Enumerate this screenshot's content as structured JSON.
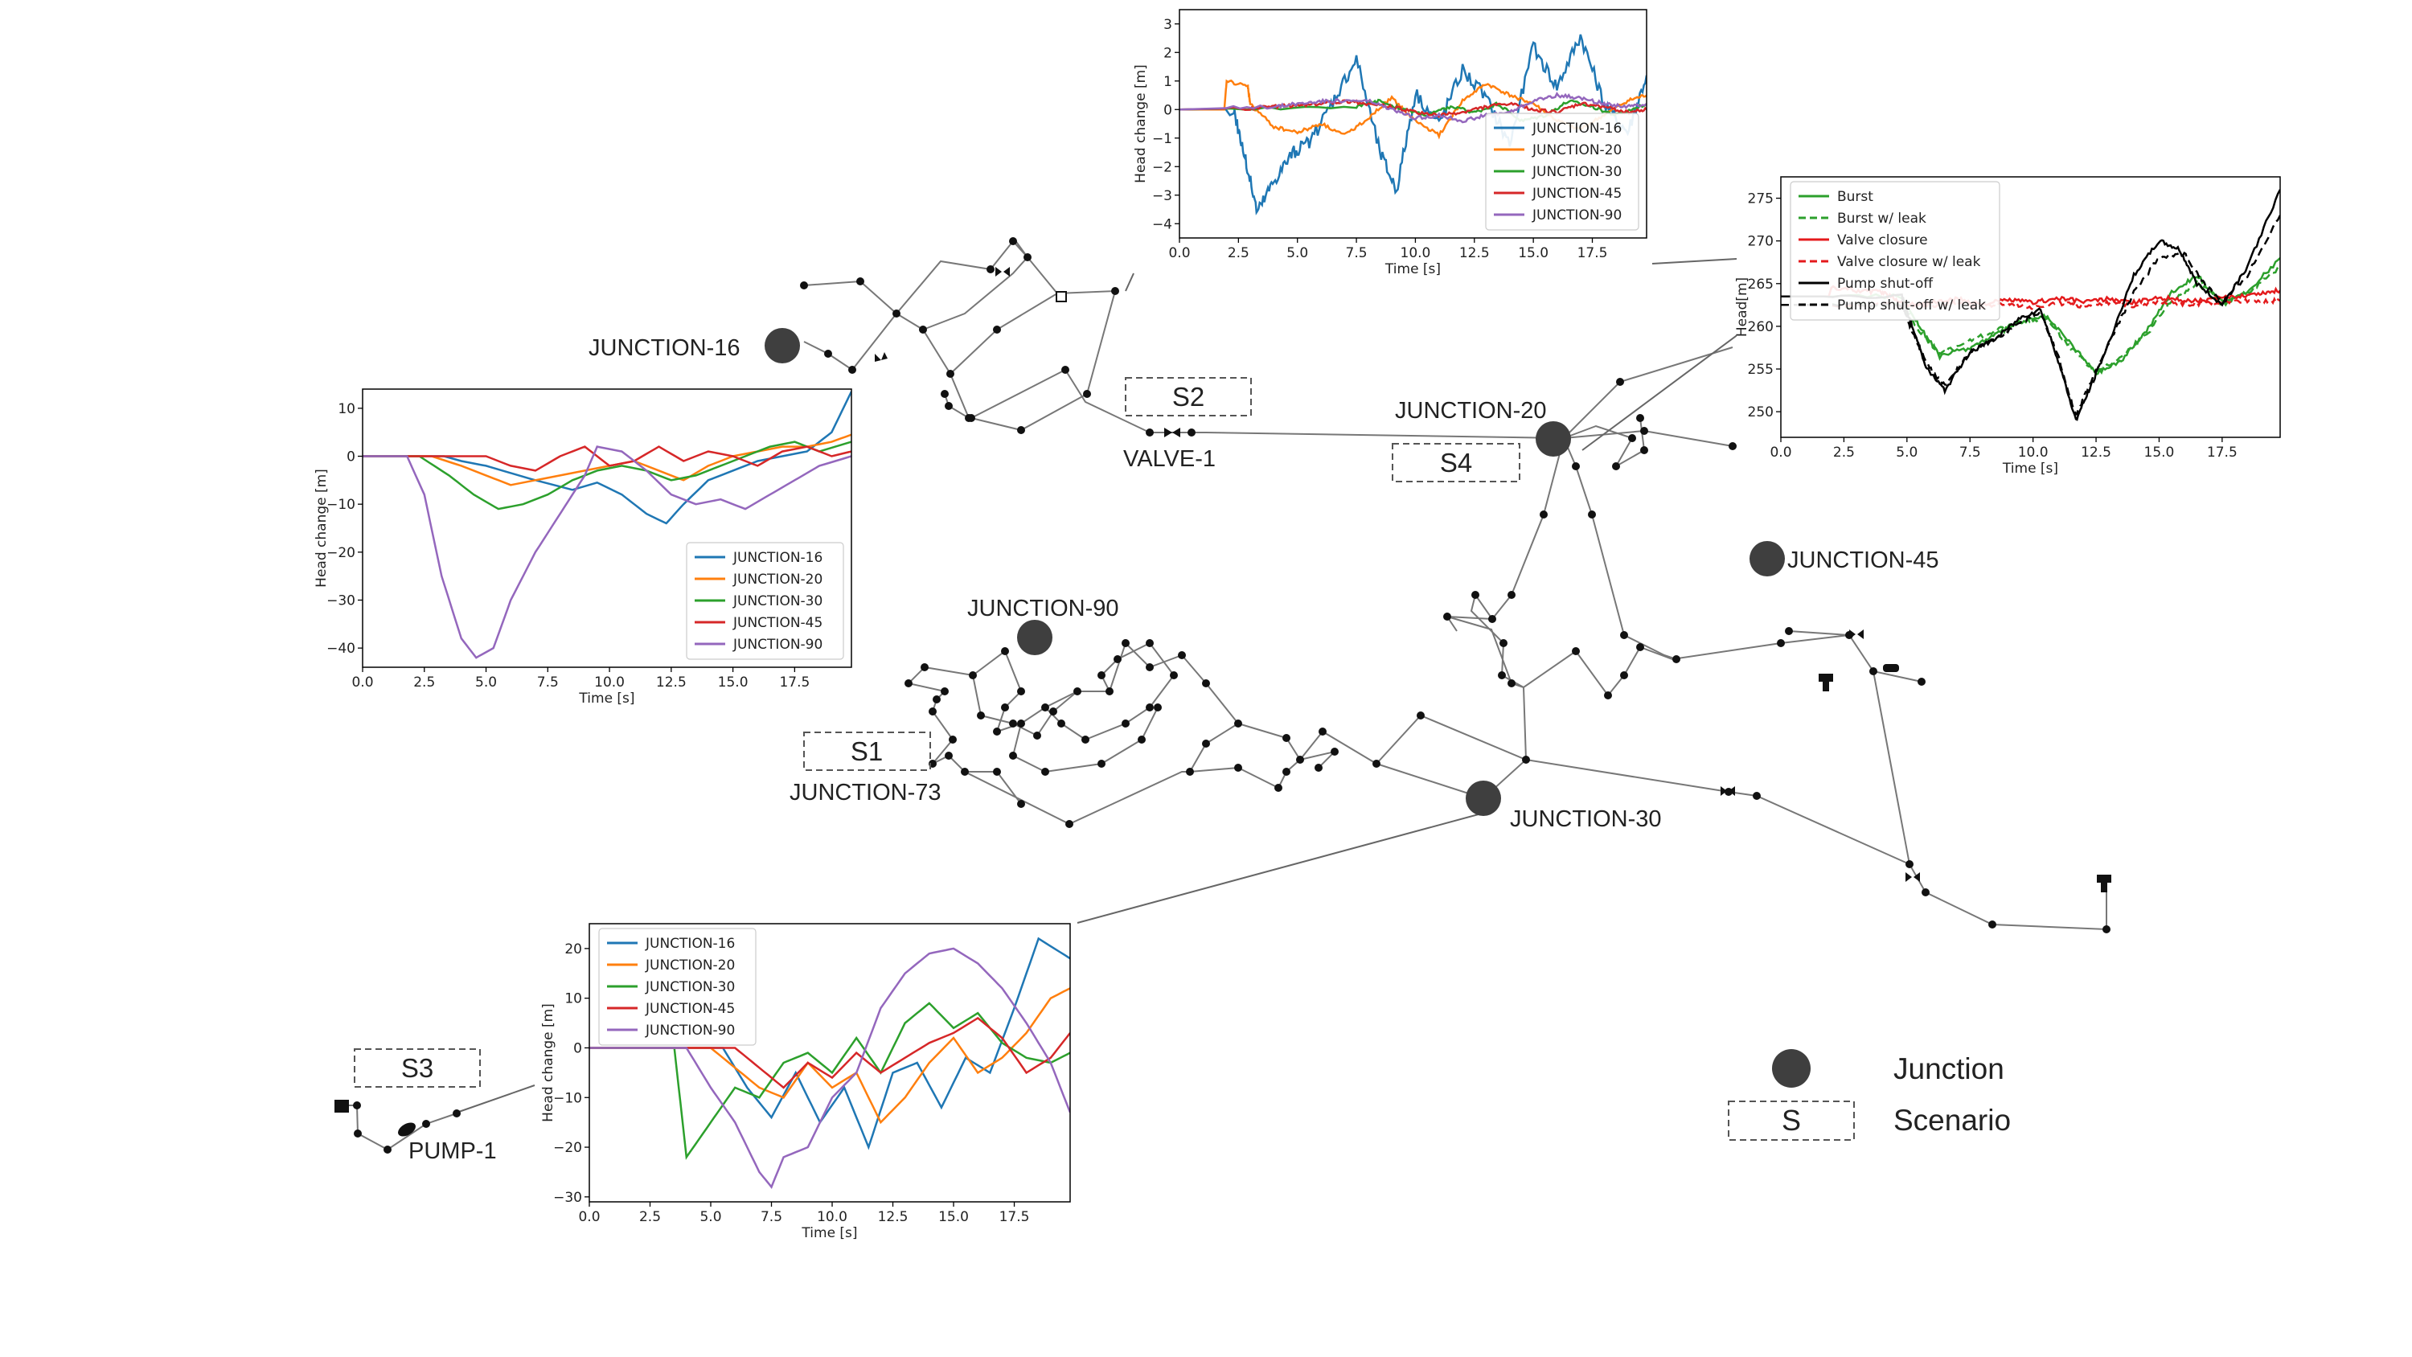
{
  "network": {
    "labels": {
      "junction16": "JUNCTION-16",
      "junction20": "JUNCTION-20",
      "junction30": "JUNCTION-30",
      "junction45": "JUNCTION-45",
      "junction90": "JUNCTION-90",
      "junction73": "JUNCTION-73",
      "valve1": "VALVE-1",
      "pump1": "PUMP-1"
    },
    "scenarios": [
      "S1",
      "S2",
      "S3",
      "S4"
    ]
  },
  "legend": {
    "junction_label": "Junction",
    "scenario_symbol": "S",
    "scenario_label": "Scenario"
  },
  "colors": {
    "j16": "#1f77b4",
    "j20": "#ff7f0e",
    "j30": "#2ca02c",
    "j45": "#d62728",
    "j90": "#9467bd",
    "node": "#444444",
    "pipe": "#777777"
  },
  "chart_data": [
    {
      "id": "s2",
      "type": "line",
      "xlabel": "Time [s]",
      "ylabel": "Head change [m]",
      "xlim": [
        0,
        19.8
      ],
      "ylim": [
        -4.5,
        3.5
      ],
      "xticks": [
        "0.0",
        "2.5",
        "5.0",
        "7.5",
        "10.0",
        "12.5",
        "15.0",
        "17.5"
      ],
      "yticks": [
        "−4",
        "−3",
        "−2",
        "−1",
        "0",
        "1",
        "2",
        "3"
      ],
      "ytick_values": [
        -4,
        -3,
        -2,
        -1,
        0,
        1,
        2,
        3
      ],
      "legend_position": "lower-right",
      "series": [
        {
          "name": "JUNCTION-16",
          "x": [
            0,
            2.3,
            2.8,
            3.3,
            4,
            4.8,
            5.5,
            6.5,
            7.5,
            8.5,
            9.2,
            10,
            11,
            12,
            13,
            14,
            15,
            16,
            17,
            18,
            19,
            19.8
          ],
          "y": [
            0,
            0,
            -1.8,
            -3.6,
            -2.5,
            -1.5,
            -1.2,
            0.3,
            1.8,
            -1.5,
            -2.8,
            0.6,
            -0.5,
            1.4,
            0.4,
            -1.2,
            2.2,
            0.8,
            2.6,
            0.2,
            -0.8,
            1.2
          ]
        },
        {
          "name": "JUNCTION-20",
          "x": [
            0,
            1.9,
            2,
            2.9,
            3,
            4,
            5,
            6,
            7,
            8,
            9,
            10,
            11,
            12,
            13,
            14,
            15,
            16,
            17,
            18,
            19,
            19.8
          ],
          "y": [
            0,
            0,
            1,
            0.8,
            0.2,
            -0.6,
            -0.8,
            -0.5,
            -0.9,
            -0.3,
            0.4,
            -0.4,
            -0.9,
            0.3,
            0.9,
            0.5,
            0.2,
            -0.4,
            -0.7,
            -0.2,
            0.3,
            0.5
          ]
        },
        {
          "name": "JUNCTION-30",
          "x": [
            0,
            7.5,
            8.5,
            9.5,
            10.5,
            11.5,
            12.5,
            13.5,
            14.5,
            15.5,
            16.5,
            17.5,
            18.5,
            19.8
          ],
          "y": [
            0,
            0.1,
            0.3,
            0,
            -0.2,
            0.1,
            -0.1,
            0.2,
            -0.4,
            -0.2,
            0.3,
            0.1,
            -0.2,
            0.2
          ]
        },
        {
          "name": "JUNCTION-45",
          "x": [
            0,
            3,
            4,
            5,
            6,
            7,
            8,
            9,
            10,
            11,
            12,
            13,
            14,
            15,
            16,
            17,
            18,
            19,
            19.8
          ],
          "y": [
            0,
            0.05,
            0.1,
            0.15,
            0.2,
            0.3,
            0.2,
            0.1,
            -0.1,
            -0.2,
            -0.1,
            0.1,
            0.2,
            0,
            -0.1,
            0.2,
            0.1,
            -0.1,
            0
          ]
        },
        {
          "name": "JUNCTION-90",
          "x": [
            0,
            4,
            5,
            6,
            7,
            8,
            9,
            10,
            11,
            12,
            13,
            14,
            15,
            16,
            17,
            18,
            19,
            19.8
          ],
          "y": [
            0,
            0.1,
            0.2,
            0.3,
            0.3,
            0.3,
            0,
            -0.3,
            -0.2,
            -0.4,
            -0.2,
            -0.1,
            0.3,
            0.5,
            0.4,
            0.2,
            0.1,
            0.2
          ]
        }
      ]
    },
    {
      "id": "s4",
      "type": "line",
      "xlabel": "Time [s]",
      "ylabel": "Head[m]",
      "xlim": [
        0,
        19.8
      ],
      "ylim": [
        247,
        277.5
      ],
      "xticks": [
        "0.0",
        "2.5",
        "5.0",
        "7.5",
        "10.0",
        "12.5",
        "15.0",
        "17.5"
      ],
      "yticks": [
        "250",
        "255",
        "260",
        "265",
        "270",
        "275"
      ],
      "ytick_values": [
        250,
        255,
        260,
        265,
        270,
        275
      ],
      "legend_position": "top-left",
      "series": [
        {
          "name": "Burst",
          "color": "#2ca02c",
          "style": "solid",
          "x": [
            0,
            4.8,
            5.5,
            6.3,
            7.5,
            8.5,
            9.5,
            10.5,
            11.5,
            12.5,
            13.5,
            14.5,
            15.5,
            16.5,
            17.5,
            18.5,
            19.8
          ],
          "y": [
            263.5,
            263.5,
            260,
            256.5,
            257.5,
            259,
            260.5,
            261.2,
            258,
            254.5,
            256,
            259.5,
            264,
            266,
            262.5,
            264,
            268
          ]
        },
        {
          "name": "Burst w/ leak",
          "color": "#2ca02c",
          "style": "dashed",
          "x": [
            0,
            4.8,
            5.5,
            6.3,
            7.5,
            8.5,
            9.5,
            10.5,
            11.5,
            12.5,
            13.5,
            14.5,
            15.5,
            16.5,
            17.5,
            18.5,
            19.8
          ],
          "y": [
            262.5,
            262.5,
            259.5,
            256.8,
            258.3,
            259.5,
            260.5,
            261,
            257.5,
            254.6,
            256.5,
            259,
            263,
            265,
            263,
            263.8,
            267
          ]
        },
        {
          "name": "Valve closure",
          "color": "#e41a1c",
          "style": "solid",
          "x": [
            0,
            1.9,
            2,
            3,
            4,
            4.5,
            5,
            6,
            7,
            8,
            9,
            10,
            11,
            12,
            13,
            14,
            15,
            16,
            17,
            18,
            19,
            19.8
          ],
          "y": [
            263.5,
            263.5,
            264.5,
            264.2,
            264,
            263.3,
            262.5,
            262.8,
            263.2,
            262.6,
            263.1,
            262.8,
            263.3,
            262.9,
            263.2,
            262.8,
            263.4,
            263,
            263.1,
            263.5,
            263.9,
            264.2
          ]
        },
        {
          "name": "Valve closure w/ leak",
          "color": "#e41a1c",
          "style": "dashed",
          "x": [
            0,
            4.5,
            5,
            6,
            7,
            8,
            9,
            10,
            11,
            12,
            13,
            14,
            15,
            16,
            17,
            18,
            19,
            19.8
          ],
          "y": [
            262.5,
            262.5,
            262.3,
            262.4,
            262.7,
            262.3,
            262.6,
            262.2,
            262.7,
            262.4,
            262.8,
            262.4,
            262.9,
            262.6,
            262.7,
            262.9,
            263,
            263
          ]
        },
        {
          "name": "Pump shut-off",
          "color": "#000000",
          "style": "solid",
          "x": [
            0,
            4.8,
            5.2,
            5.8,
            6.5,
            7.5,
            8.5,
            9.5,
            10.3,
            11,
            11.7,
            12.3,
            13,
            14,
            15,
            15.8,
            16.5,
            17.5,
            18.5,
            19.8
          ],
          "y": [
            263.5,
            263.5,
            260,
            255,
            252.5,
            257,
            258.5,
            261,
            262,
            256,
            249,
            253,
            258,
            266,
            270,
            269,
            265,
            262.5,
            267,
            276
          ]
        },
        {
          "name": "Pump shut-off w/ leak",
          "color": "#000000",
          "style": "dashed",
          "x": [
            0,
            4.8,
            5.2,
            5.8,
            6.5,
            7.5,
            8.5,
            9.5,
            10.3,
            11,
            11.7,
            12.3,
            13,
            14,
            15,
            16,
            16.8,
            17.5,
            18.5,
            19.8
          ],
          "y": [
            262.5,
            262.5,
            259.5,
            255.5,
            253,
            257,
            258.5,
            260.5,
            261.5,
            256.5,
            249.5,
            253.5,
            258,
            264,
            268,
            268.5,
            265,
            262.8,
            266,
            273
          ]
        }
      ]
    },
    {
      "id": "s1",
      "type": "line",
      "xlabel": "Time [s]",
      "ylabel": "Head change [m]",
      "xlim": [
        0,
        19.8
      ],
      "ylim": [
        -44,
        14
      ],
      "xticks": [
        "0.0",
        "2.5",
        "5.0",
        "7.5",
        "10.0",
        "12.5",
        "15.0",
        "17.5"
      ],
      "yticks": [
        "−40",
        "−30",
        "−20",
        "−10",
        "0",
        "10"
      ],
      "ytick_values": [
        -40,
        -30,
        -20,
        -10,
        0,
        10
      ],
      "legend_position": "lower-right",
      "series": [
        {
          "name": "JUNCTION-16",
          "x": [
            0,
            3.3,
            4,
            5,
            6,
            7,
            8.5,
            9.5,
            10.5,
            11.5,
            12.3,
            13,
            14,
            15,
            16,
            17,
            18,
            19,
            19.8
          ],
          "y": [
            0,
            0,
            -1,
            -2,
            -3.5,
            -5,
            -7,
            -5.5,
            -8,
            -12,
            -14,
            -10,
            -5,
            -3,
            -1,
            0,
            1,
            5,
            13.5
          ]
        },
        {
          "name": "JUNCTION-20",
          "x": [
            0,
            2.8,
            4,
            5,
            6,
            7,
            8,
            9,
            10,
            11,
            12,
            13,
            14,
            15,
            16,
            17,
            18,
            19,
            19.8
          ],
          "y": [
            0,
            0,
            -2,
            -4,
            -6,
            -5,
            -4,
            -3,
            -2,
            -1,
            -3,
            -5,
            -2,
            0,
            1,
            2,
            2,
            3,
            4.5
          ]
        },
        {
          "name": "JUNCTION-30",
          "x": [
            0,
            2.3,
            3.5,
            4.5,
            5.5,
            6.5,
            7.5,
            8.5,
            9.5,
            10.5,
            11.5,
            12.5,
            13.5,
            14.5,
            15.5,
            16.5,
            17.5,
            18.5,
            19.8
          ],
          "y": [
            0,
            0,
            -4,
            -8,
            -11,
            -10,
            -8,
            -5,
            -3,
            -2,
            -3,
            -5,
            -4,
            -2,
            0,
            2,
            3,
            1,
            3
          ]
        },
        {
          "name": "JUNCTION-45",
          "x": [
            0,
            5,
            6,
            7,
            8,
            9,
            10,
            11,
            12,
            13,
            14,
            15,
            16,
            17,
            18,
            19,
            19.8
          ],
          "y": [
            0,
            0,
            -2,
            -3,
            0,
            2,
            -2,
            -1,
            2,
            -1,
            1,
            0,
            -2,
            1,
            2,
            0,
            1
          ]
        },
        {
          "name": "JUNCTION-90",
          "x": [
            0,
            1.8,
            2.5,
            3.2,
            4,
            4.6,
            5.3,
            6,
            7,
            8,
            9,
            9.5,
            10.5,
            11.5,
            12.5,
            13.5,
            14.5,
            15.5,
            16.5,
            17.5,
            18.5,
            19.8
          ],
          "y": [
            0,
            0,
            -8,
            -25,
            -38,
            -42,
            -40,
            -30,
            -20,
            -12,
            -4,
            2,
            1,
            -3,
            -8,
            -10,
            -9,
            -11,
            -8,
            -5,
            -2,
            0
          ]
        }
      ]
    },
    {
      "id": "s3",
      "type": "line",
      "xlabel": "Time [s]",
      "ylabel": "Head change [m]",
      "xlim": [
        0,
        19.8
      ],
      "ylim": [
        -31,
        25
      ],
      "xticks": [
        "0.0",
        "2.5",
        "5.0",
        "7.5",
        "10.0",
        "12.5",
        "15.0",
        "17.5"
      ],
      "yticks": [
        "−30",
        "−20",
        "−10",
        "0",
        "10",
        "20"
      ],
      "ytick_values": [
        -30,
        -20,
        -10,
        0,
        10,
        20
      ],
      "legend_position": "top-left",
      "series": [
        {
          "name": "JUNCTION-16",
          "x": [
            0,
            5.5,
            6.5,
            7.5,
            8.5,
            9.5,
            10.5,
            11.5,
            12.5,
            13.5,
            14.5,
            15.5,
            16.5,
            17.5,
            18.5,
            19.8
          ],
          "y": [
            0,
            0,
            -8,
            -14,
            -5,
            -15,
            -8,
            -20,
            -5,
            -3,
            -12,
            -2,
            -5,
            8,
            22,
            18
          ]
        },
        {
          "name": "JUNCTION-20",
          "x": [
            0,
            5,
            6,
            7,
            8,
            9,
            10,
            11,
            12,
            13,
            14,
            15,
            16,
            17,
            18,
            19,
            19.8
          ],
          "y": [
            0,
            0,
            -4,
            -8,
            -10,
            -3,
            -8,
            -5,
            -15,
            -10,
            -3,
            2,
            -5,
            -2,
            3,
            10,
            12
          ]
        },
        {
          "name": "JUNCTION-30",
          "x": [
            0,
            3.5,
            4,
            5,
            6,
            7,
            8,
            9,
            10,
            11,
            12,
            13,
            14,
            15,
            16,
            17,
            18,
            19,
            19.8
          ],
          "y": [
            0,
            0,
            -22,
            -15,
            -8,
            -10,
            -3,
            -1,
            -5,
            2,
            -5,
            5,
            9,
            4,
            7,
            1,
            -2,
            -3,
            -1
          ]
        },
        {
          "name": "JUNCTION-45",
          "x": [
            0,
            6,
            7,
            8,
            9,
            10,
            11,
            12,
            13,
            14,
            15,
            16,
            17,
            18,
            19,
            19.8
          ],
          "y": [
            0,
            0,
            -4,
            -8,
            -3,
            -6,
            -1,
            -5,
            -2,
            1,
            3,
            6,
            2,
            -5,
            -2,
            3
          ]
        },
        {
          "name": "JUNCTION-90",
          "x": [
            0,
            4,
            5,
            6,
            7,
            7.5,
            8,
            9,
            10,
            11,
            12,
            13,
            14,
            15,
            16,
            17,
            18,
            19,
            19.8
          ],
          "y": [
            0,
            0,
            -8,
            -15,
            -25,
            -28,
            -22,
            -20,
            -10,
            -5,
            8,
            15,
            19,
            20,
            17,
            12,
            5,
            -3,
            -13
          ]
        }
      ]
    }
  ]
}
